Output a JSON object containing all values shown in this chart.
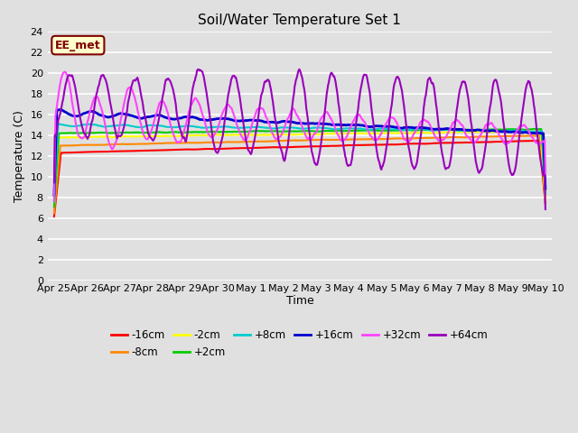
{
  "title": "Soil/Water Temperature Set 1",
  "xlabel": "Time",
  "ylabel": "Temperature (C)",
  "ylim": [
    0,
    24
  ],
  "yticks": [
    0,
    2,
    4,
    6,
    8,
    10,
    12,
    14,
    16,
    18,
    20,
    22,
    24
  ],
  "bg_color": "#e0e0e0",
  "annotation_text": "EE_met",
  "annotation_bg": "#ffffcc",
  "annotation_border": "#800000",
  "series_colors": {
    "-16cm": "#ff0000",
    "-8cm": "#ff8800",
    "-2cm": "#ffff00",
    "+2cm": "#00cc00",
    "+8cm": "#00cccc",
    "+16cm": "#0000cc",
    "+32cm": "#ff44ff",
    "+64cm": "#9900bb"
  },
  "x_tick_labels": [
    "Apr 25",
    "Apr 26",
    "Apr 27",
    "Apr 28",
    "Apr 29",
    "Apr 30",
    "May 1",
    "May 2",
    "May 3",
    "May 4",
    "May 5",
    "May 6",
    "May 7",
    "May 8",
    "May 9",
    "May 10"
  ],
  "x_tick_positions": [
    0,
    1,
    2,
    3,
    4,
    5,
    6,
    7,
    8,
    9,
    10,
    11,
    12,
    13,
    14,
    15
  ]
}
